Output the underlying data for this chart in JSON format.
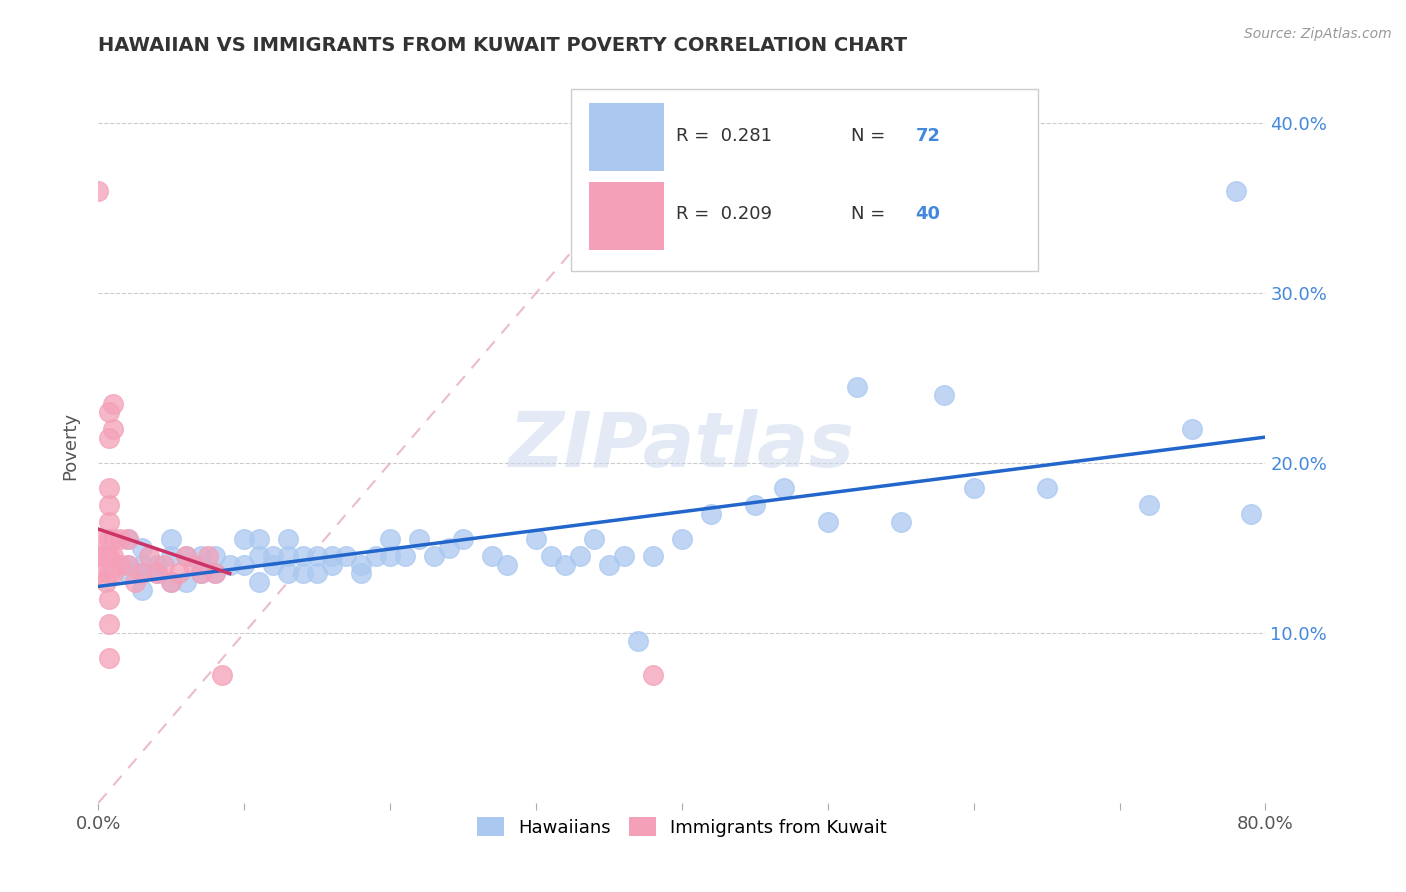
{
  "title": "HAWAIIAN VS IMMIGRANTS FROM KUWAIT POVERTY CORRELATION CHART",
  "source": "Source: ZipAtlas.com",
  "ylabel": "Poverty",
  "xlim": [
    0,
    0.8
  ],
  "ylim": [
    0,
    0.42
  ],
  "watermark": "ZIPatlas",
  "hawaiians_color": "#aac8f0",
  "kuwait_color": "#f4a0b8",
  "trendline_hawaiians_color": "#2266cc",
  "trendline_kuwait_color": "#cc3366",
  "refline_color": "#e8a0b0",
  "background_color": "#ffffff",
  "grid_color": "#cccccc",
  "ytick_color": "#4488dd",
  "hawaiians_x": [
    0.02,
    0.02,
    0.02,
    0.03,
    0.03,
    0.03,
    0.03,
    0.04,
    0.04,
    0.05,
    0.05,
    0.05,
    0.06,
    0.06,
    0.07,
    0.07,
    0.07,
    0.08,
    0.08,
    0.09,
    0.1,
    0.1,
    0.11,
    0.11,
    0.11,
    0.12,
    0.12,
    0.13,
    0.13,
    0.13,
    0.14,
    0.14,
    0.15,
    0.15,
    0.16,
    0.16,
    0.17,
    0.18,
    0.18,
    0.19,
    0.2,
    0.2,
    0.21,
    0.22,
    0.23,
    0.24,
    0.25,
    0.27,
    0.28,
    0.3,
    0.31,
    0.32,
    0.33,
    0.34,
    0.35,
    0.36,
    0.37,
    0.38,
    0.4,
    0.42,
    0.45,
    0.47,
    0.5,
    0.52,
    0.55,
    0.58,
    0.6,
    0.65,
    0.72,
    0.75,
    0.78,
    0.79
  ],
  "hawaiians_y": [
    0.155,
    0.14,
    0.135,
    0.15,
    0.14,
    0.135,
    0.125,
    0.14,
    0.135,
    0.155,
    0.145,
    0.13,
    0.145,
    0.13,
    0.14,
    0.135,
    0.145,
    0.145,
    0.135,
    0.14,
    0.155,
    0.14,
    0.145,
    0.155,
    0.13,
    0.145,
    0.14,
    0.145,
    0.155,
    0.135,
    0.145,
    0.135,
    0.145,
    0.135,
    0.145,
    0.14,
    0.145,
    0.135,
    0.14,
    0.145,
    0.145,
    0.155,
    0.145,
    0.155,
    0.145,
    0.15,
    0.155,
    0.145,
    0.14,
    0.155,
    0.145,
    0.14,
    0.145,
    0.155,
    0.14,
    0.145,
    0.095,
    0.145,
    0.155,
    0.17,
    0.175,
    0.185,
    0.165,
    0.245,
    0.165,
    0.24,
    0.185,
    0.185,
    0.175,
    0.22,
    0.36,
    0.17
  ],
  "kuwait_x": [
    0.0,
    0.0,
    0.0,
    0.0,
    0.005,
    0.005,
    0.007,
    0.007,
    0.007,
    0.007,
    0.007,
    0.007,
    0.007,
    0.007,
    0.007,
    0.007,
    0.007,
    0.01,
    0.01,
    0.01,
    0.01,
    0.01,
    0.015,
    0.015,
    0.02,
    0.02,
    0.025,
    0.03,
    0.035,
    0.04,
    0.045,
    0.05,
    0.055,
    0.06,
    0.065,
    0.07,
    0.075,
    0.08,
    0.085,
    0.38
  ],
  "kuwait_y": [
    0.135,
    0.145,
    0.155,
    0.36,
    0.13,
    0.145,
    0.085,
    0.105,
    0.12,
    0.135,
    0.145,
    0.155,
    0.165,
    0.175,
    0.185,
    0.215,
    0.23,
    0.135,
    0.145,
    0.155,
    0.22,
    0.235,
    0.14,
    0.155,
    0.14,
    0.155,
    0.13,
    0.135,
    0.145,
    0.135,
    0.14,
    0.13,
    0.135,
    0.145,
    0.14,
    0.135,
    0.145,
    0.135,
    0.075,
    0.075
  ]
}
